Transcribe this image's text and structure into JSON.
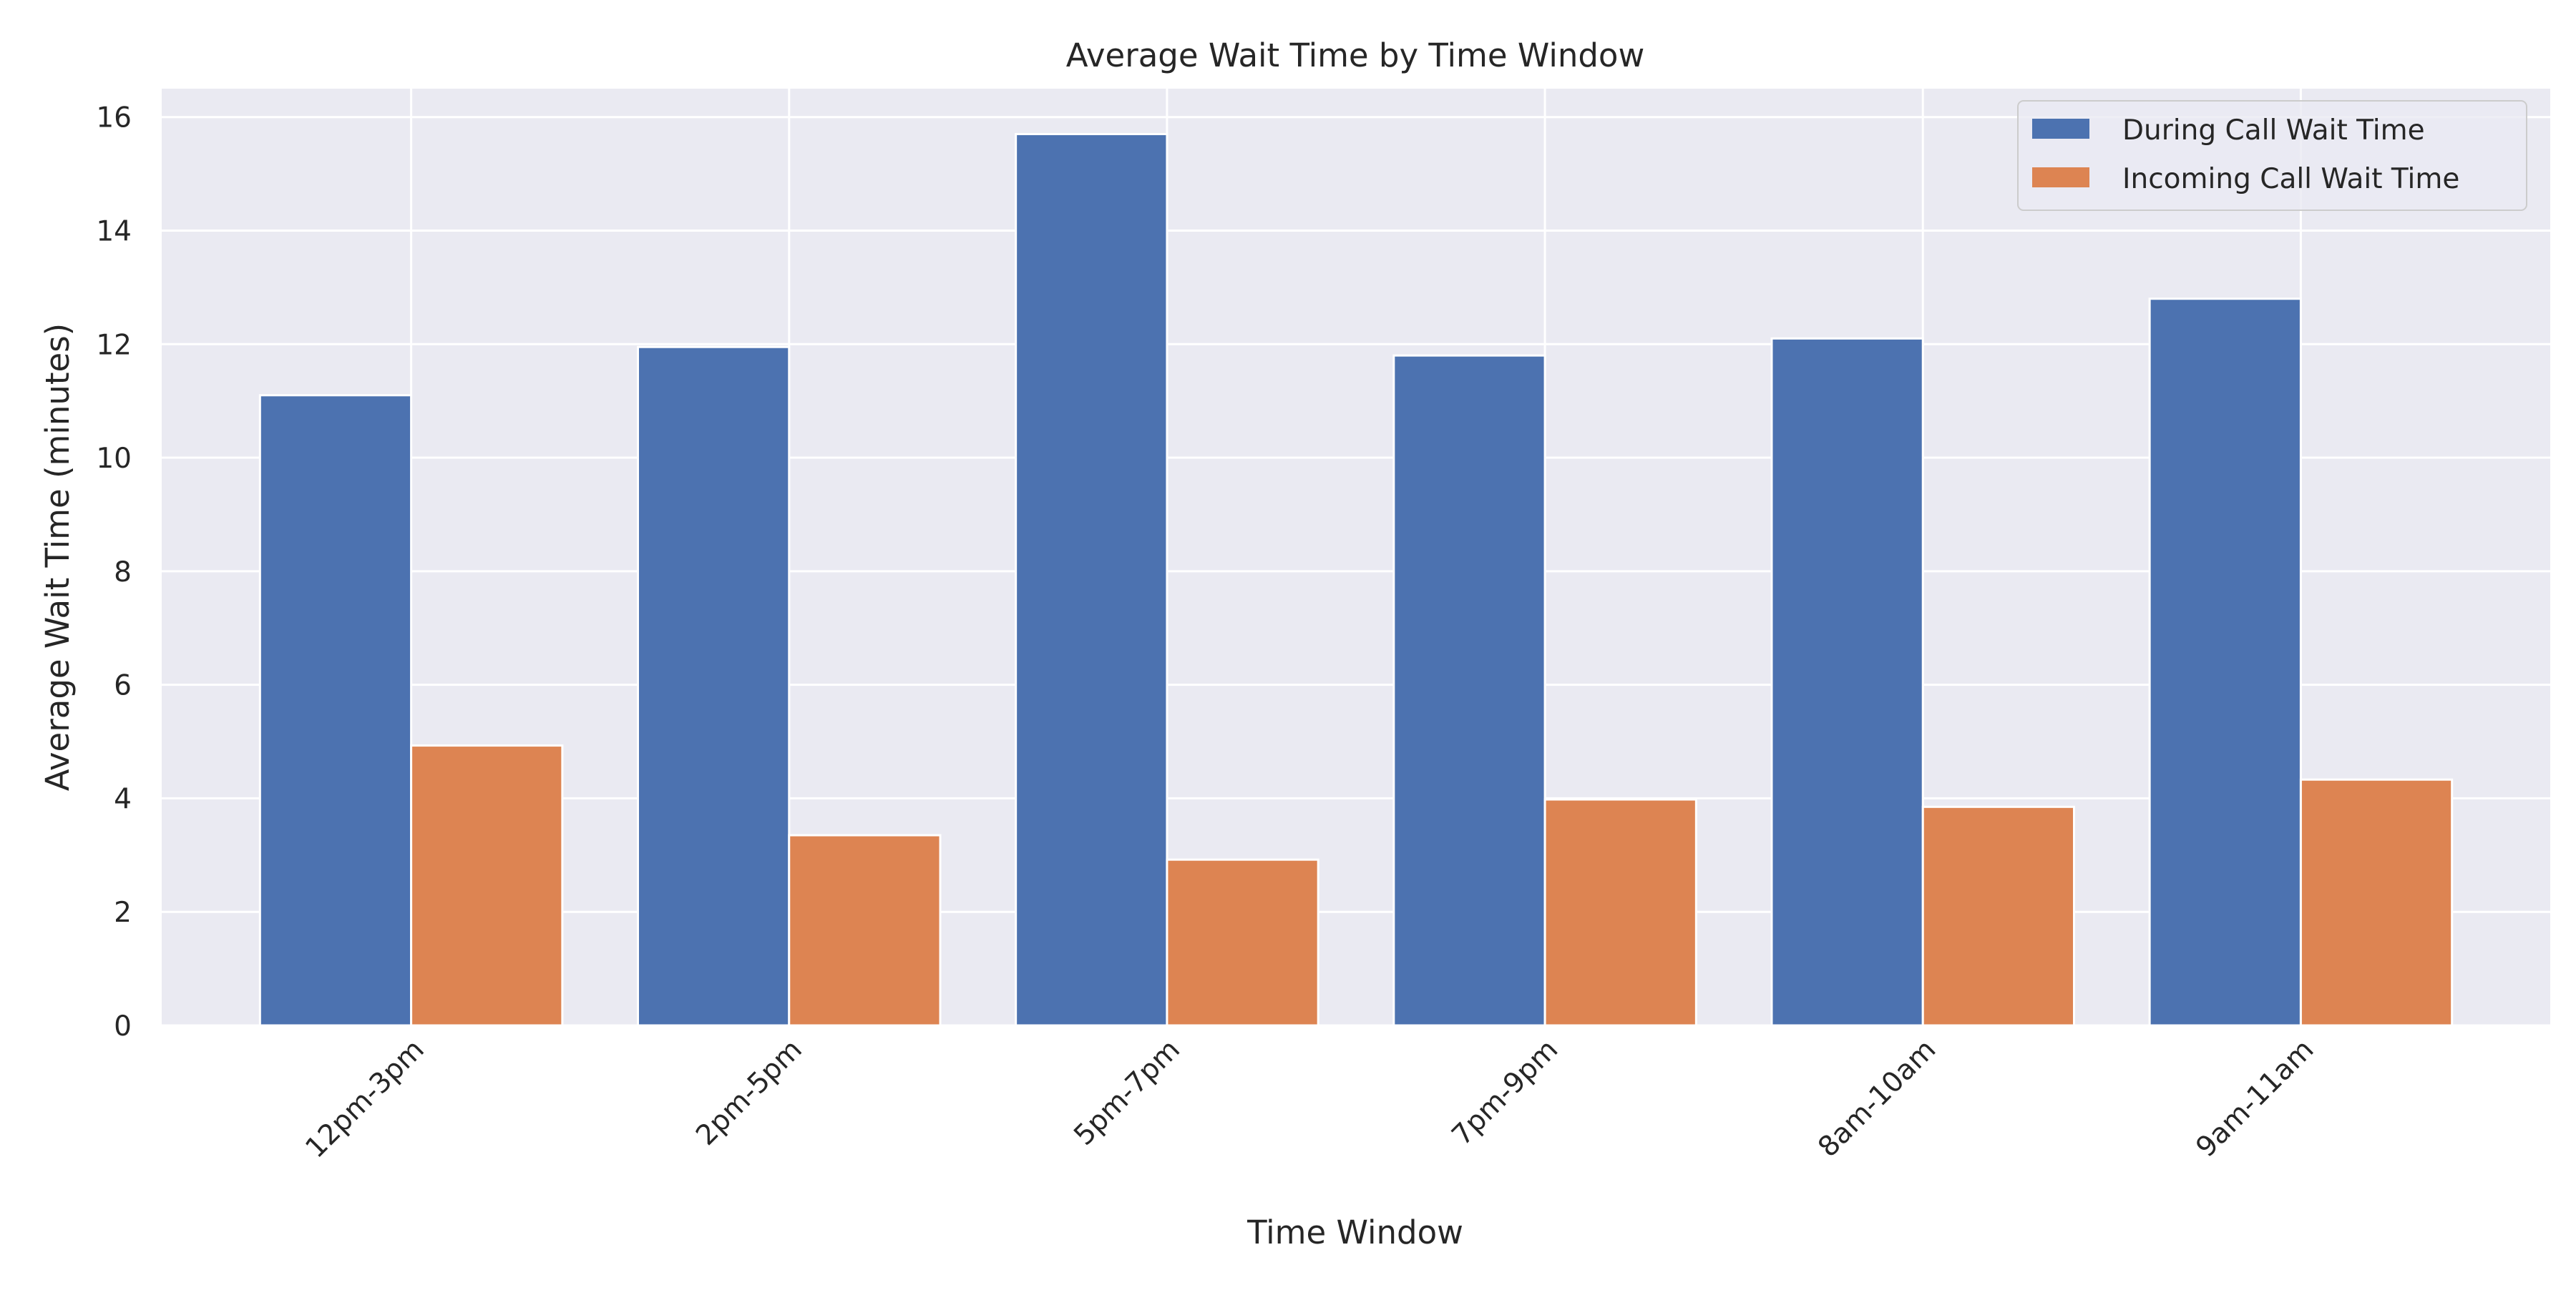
{
  "chart_data": {
    "type": "bar",
    "title": "Average Wait Time by Time Window",
    "xlabel": "Time Window",
    "ylabel": "Average Wait Time (minutes)",
    "categories": [
      "12pm-3pm",
      "2pm-5pm",
      "5pm-7pm",
      "7pm-9pm",
      "8am-10am",
      "9am-11am"
    ],
    "series": [
      {
        "name": "During Call Wait Time",
        "color": "#4c72b0",
        "values": [
          11.1,
          11.95,
          15.7,
          11.8,
          12.1,
          12.8
        ]
      },
      {
        "name": "Incoming Call Wait Time",
        "color": "#dd8452",
        "values": [
          4.93,
          3.35,
          2.92,
          3.98,
          3.85,
          4.33
        ]
      }
    ],
    "ylim": [
      0,
      16.5
    ],
    "yticks": [
      0,
      2,
      4,
      6,
      8,
      10,
      12,
      14,
      16
    ],
    "grid": true,
    "legend_position": "top-right",
    "background_color": "#eaeaf2",
    "grid_color": "#ffffff"
  }
}
